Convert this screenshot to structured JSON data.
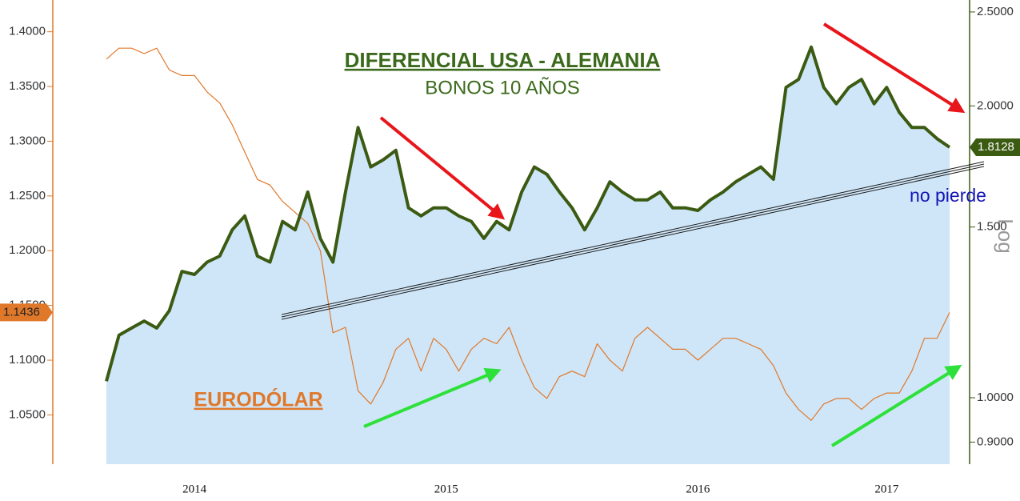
{
  "chart_data": {
    "type": "line",
    "title": "DIFERENCIAL USA - ALEMANIA",
    "subtitle": "BONOS 10 AÑOS",
    "annotation": "no pierde",
    "y2label": "Log",
    "categories": [
      null,
      null,
      null,
      null,
      null,
      null,
      null,
      "2014",
      null,
      null,
      null,
      null,
      null,
      null,
      null,
      null,
      null,
      null,
      null,
      null,
      null,
      null,
      null,
      null,
      null,
      null,
      null,
      "2015",
      null,
      null,
      null,
      null,
      null,
      null,
      null,
      null,
      null,
      null,
      null,
      null,
      null,
      null,
      null,
      null,
      null,
      null,
      null,
      "2016",
      null,
      null,
      null,
      null,
      null,
      null,
      null,
      null,
      null,
      null,
      null,
      null,
      null,
      null,
      "2017",
      null,
      null,
      null,
      null,
      null
    ],
    "ylim": [
      1.005,
      1.429
    ],
    "yticks": [
      {
        "value": 1.4,
        "label": "1.4000"
      },
      {
        "value": 1.35,
        "label": "1.3500"
      },
      {
        "value": 1.3,
        "label": "1.3000"
      },
      {
        "value": 1.25,
        "label": "1.2500"
      },
      {
        "value": 1.2,
        "label": "1.2000"
      },
      {
        "value": 1.15,
        "label": "1.1500"
      },
      {
        "value": 1.1,
        "label": "1.1000"
      },
      {
        "value": 1.05,
        "label": "1.0500"
      }
    ],
    "y2lim": [
      0.854,
      2.572
    ],
    "y2scale": "log",
    "y2ticks": [
      {
        "value": 2.5,
        "label": "2.5000"
      },
      {
        "value": 2,
        "label": "2.0000"
      },
      {
        "value": 1.5,
        "label": "1.500"
      },
      {
        "value": 1,
        "label": "1.0000"
      },
      {
        "value": 0.9,
        "label": "0.9000"
      }
    ],
    "grid": false,
    "series": [
      {
        "axis": "y2",
        "color": "#3b5a12",
        "area_color": "#cfe6f8",
        "last_value_label": "1.8128",
        "values": [
          1.04,
          1.16,
          1.18,
          1.2,
          1.18,
          1.23,
          1.35,
          1.34,
          1.38,
          1.4,
          1.49,
          1.54,
          1.4,
          1.38,
          1.52,
          1.49,
          1.63,
          1.46,
          1.38,
          1.63,
          1.9,
          1.73,
          1.76,
          1.8,
          1.57,
          1.54,
          1.57,
          1.57,
          1.54,
          1.52,
          1.46,
          1.52,
          1.49,
          1.63,
          1.73,
          1.7,
          1.63,
          1.57,
          1.49,
          1.57,
          1.67,
          1.63,
          1.6,
          1.6,
          1.63,
          1.57,
          1.57,
          1.56,
          1.6,
          1.63,
          1.67,
          1.7,
          1.73,
          1.68,
          2.09,
          2.13,
          2.3,
          2.09,
          2.01,
          2.09,
          2.13,
          2.01,
          2.09,
          1.97,
          1.9,
          1.9,
          1.85,
          1.8128
        ]
      },
      {
        "name": "EURODÓLAR",
        "axis": "y",
        "color": "#e0782a",
        "last_value_label": "1.1436",
        "values": [
          1.375,
          1.385,
          1.385,
          1.38,
          1.385,
          1.365,
          1.36,
          1.36,
          1.345,
          1.335,
          1.315,
          1.29,
          1.265,
          1.26,
          1.245,
          1.235,
          1.225,
          1.2,
          1.125,
          1.13,
          1.072,
          1.06,
          1.08,
          1.11,
          1.12,
          1.09,
          1.12,
          1.11,
          1.09,
          1.11,
          1.12,
          1.115,
          1.13,
          1.1,
          1.075,
          1.065,
          1.085,
          1.09,
          1.085,
          1.115,
          1.1,
          1.09,
          1.12,
          1.13,
          1.12,
          1.11,
          1.11,
          1.1,
          1.11,
          1.12,
          1.12,
          1.115,
          1.11,
          1.095,
          1.07,
          1.055,
          1.045,
          1.06,
          1.065,
          1.065,
          1.055,
          1.065,
          1.07,
          1.07,
          1.09,
          1.12,
          1.12,
          1.1436
        ]
      }
    ]
  }
}
